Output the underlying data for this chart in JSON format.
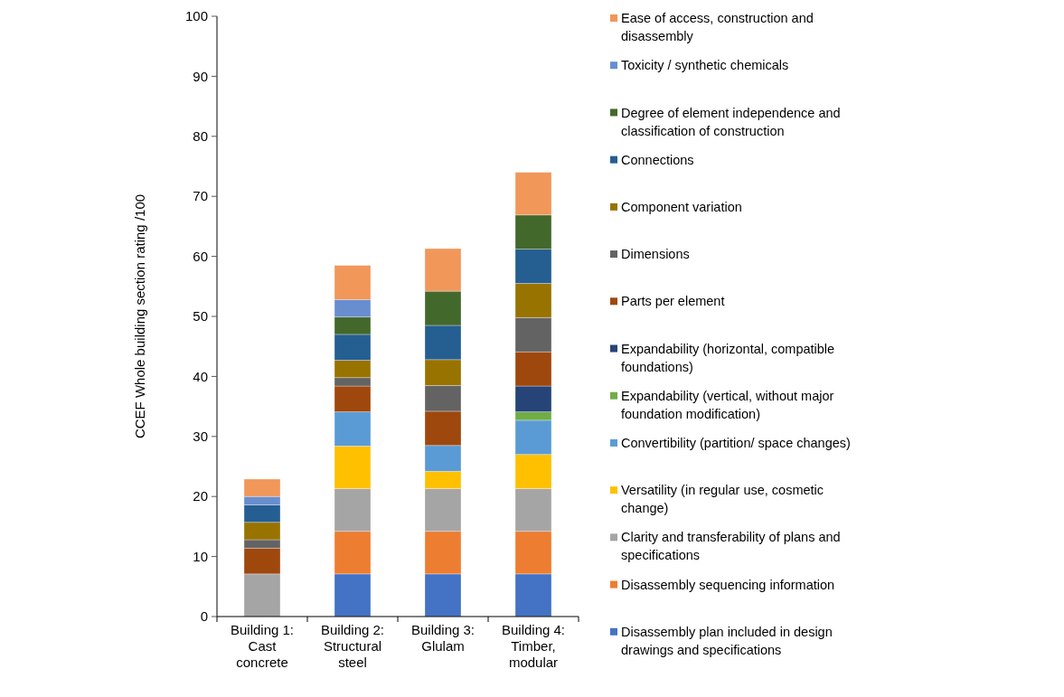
{
  "chart_data": {
    "type": "bar",
    "stacked": true,
    "ylabel": "CCEF Whole building section rating /100",
    "categories": [
      "Building 1: Cast concrete",
      "Building 2: Structural steel",
      "Building 3: Glulam",
      "Building 4: Timber, modular"
    ],
    "ylim": [
      0,
      100
    ],
    "yticks": [
      0,
      10,
      20,
      30,
      40,
      50,
      60,
      70,
      80,
      90,
      100
    ],
    "grid": false,
    "legend": "right",
    "series": [
      {
        "name": "Disassembly plan included in design drawings and specifications",
        "color": "#4472c4",
        "values": [
          null,
          7.1,
          7.1,
          7.1
        ]
      },
      {
        "name": "Disassembly sequencing information",
        "color": "#ed7d31",
        "values": [
          null,
          7.1,
          7.1,
          7.1
        ]
      },
      {
        "name": "Clarity and transferability of plans and specifications",
        "color": "#a5a5a5",
        "values": [
          7.1,
          7.1,
          7.1,
          7.1
        ]
      },
      {
        "name": "Versatility (in regular use, cosmetic change)",
        "color": "#ffc000",
        "values": [
          null,
          7.1,
          2.9,
          5.7
        ]
      },
      {
        "name": "Convertibility  (partition/ space changes)",
        "color": "#5b9bd5",
        "values": [
          null,
          5.7,
          4.3,
          5.7
        ]
      },
      {
        "name": "Expandability (vertical, without major foundation modification)",
        "color": "#70ad47",
        "values": [
          null,
          null,
          null,
          1.4
        ]
      },
      {
        "name": "Expandability (horizontal, compatible foundations)",
        "color": "#264478",
        "values": [
          null,
          null,
          null,
          4.3
        ]
      },
      {
        "name": "Parts per element",
        "color": "#9e480e",
        "values": [
          4.3,
          4.3,
          5.7,
          5.7
        ]
      },
      {
        "name": "Dimensions",
        "color": "#636363",
        "values": [
          1.4,
          1.4,
          4.3,
          5.7
        ]
      },
      {
        "name": "Component variation",
        "color": "#997300",
        "values": [
          2.9,
          2.9,
          4.3,
          5.7
        ]
      },
      {
        "name": "Connections",
        "color": "#255e91",
        "values": [
          2.9,
          4.3,
          5.7,
          5.7
        ]
      },
      {
        "name": "Degree of element independence and classification of construction",
        "color": "#43682b",
        "values": [
          null,
          2.9,
          5.7,
          5.7
        ]
      },
      {
        "name": "Toxicity / synthetic chemicals",
        "color": "#698ed0",
        "values": [
          1.4,
          2.9,
          null,
          null
        ]
      },
      {
        "name": "Ease of access, construction and disassembly",
        "color": "#f1975a",
        "values": [
          2.9,
          5.7,
          7.1,
          7.1
        ]
      }
    ]
  }
}
